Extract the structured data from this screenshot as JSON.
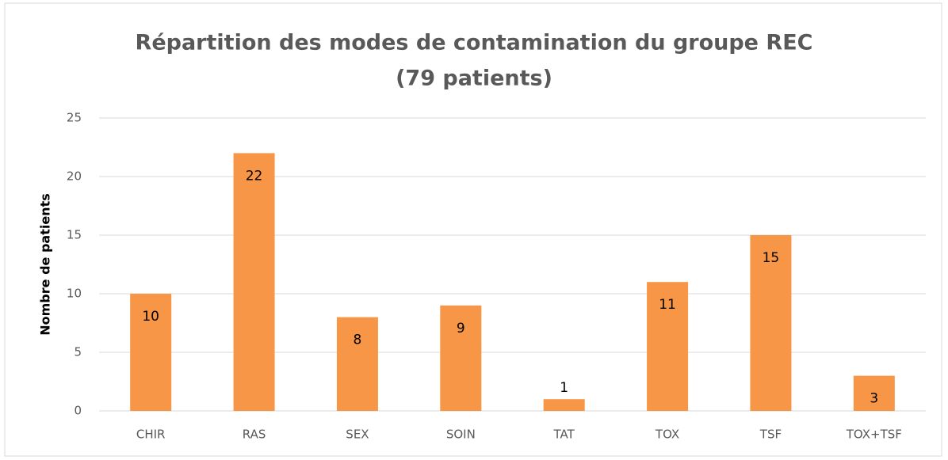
{
  "chart_data": {
    "type": "bar",
    "title": [
      "Répartition des modes de contamination du groupe REC",
      "(79 patients)"
    ],
    "y_label": "Nombre de patients",
    "categories": [
      "CHIR",
      "RAS",
      "SEX",
      "SOIN",
      "TAT",
      "TOX",
      "TSF",
      "TOX+TSF"
    ],
    "values": [
      10,
      22,
      8,
      9,
      1,
      11,
      15,
      3
    ],
    "color": "#f79646",
    "ylim": [
      0,
      25
    ],
    "yticks": [
      0,
      5,
      10,
      15,
      20,
      25
    ],
    "grid": true
  }
}
